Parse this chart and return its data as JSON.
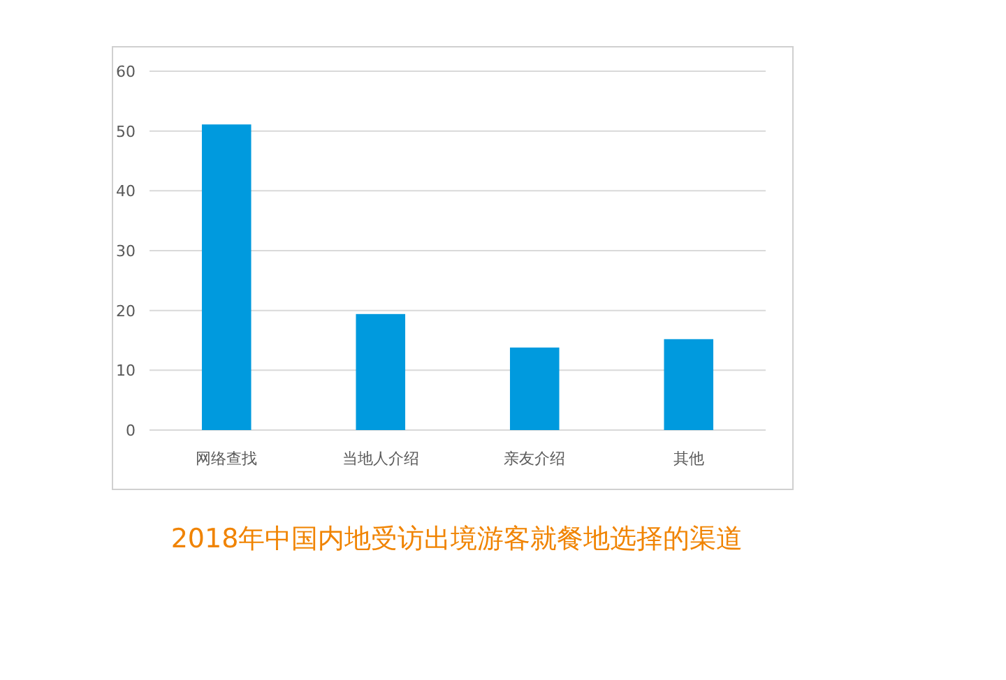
{
  "chart_data": {
    "type": "bar",
    "title": "2018年中国内地受访出境游客就餐地选择的渠道",
    "categories": [
      "网络查找",
      "当地人介绍",
      "亲友介绍",
      "其他"
    ],
    "values": [
      51.1,
      19.4,
      13.8,
      15.2
    ],
    "color": "#009ade",
    "ylim": [
      0,
      60
    ],
    "yticks": [
      0,
      10,
      20,
      30,
      40,
      50,
      60
    ],
    "grid": "y"
  }
}
